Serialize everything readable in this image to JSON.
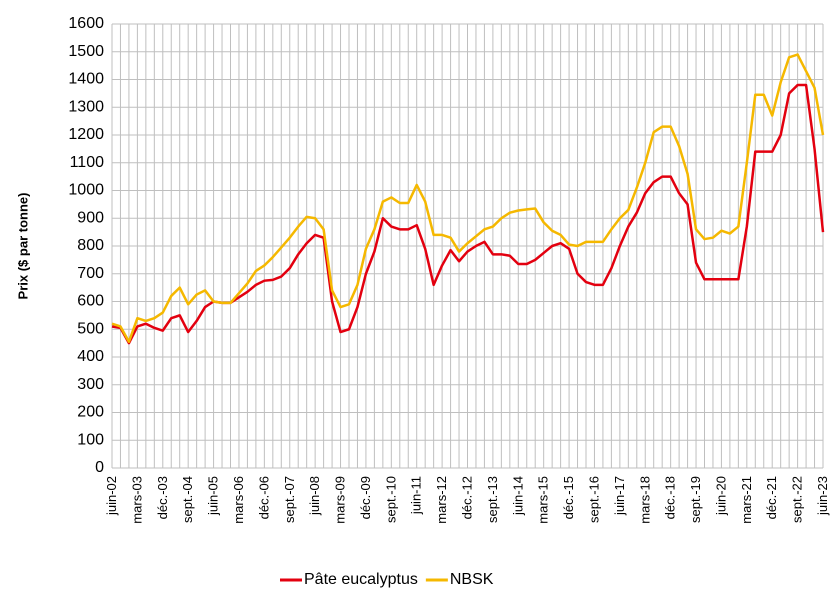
{
  "chart_data": {
    "type": "line",
    "y_label": "Prix ($ par tonne)",
    "categories": [
      "juin-02",
      null,
      null,
      "mars-03",
      null,
      null,
      "déc.-03",
      null,
      null,
      "sept.-04",
      null,
      null,
      "juin-05",
      null,
      null,
      "mars-06",
      null,
      null,
      "déc.-06",
      null,
      null,
      "sept.-07",
      null,
      null,
      "juin-08",
      null,
      null,
      "mars-09",
      null,
      null,
      "déc.-09",
      null,
      null,
      "sept.-10",
      null,
      null,
      "juin-11",
      null,
      null,
      "mars-12",
      null,
      null,
      "déc.-12",
      null,
      null,
      "sept.-13",
      null,
      null,
      "juin-14",
      null,
      null,
      "mars-15",
      null,
      null,
      "déc.-15",
      null,
      null,
      "sept.-16",
      null,
      null,
      "juin-17",
      null,
      null,
      "mars-18",
      null,
      null,
      "déc.-18",
      null,
      null,
      "sept.-19",
      null,
      null,
      "juin-20",
      null,
      null,
      "mars-21",
      null,
      null,
      "déc.-21",
      null,
      null,
      "sept.-22",
      null,
      null,
      "juin-23"
    ],
    "series": [
      {
        "name": "Pâte eucalyptus",
        "color": "#e3000f",
        "values": [
          510,
          505,
          450,
          510,
          520,
          505,
          495,
          540,
          550,
          490,
          530,
          580,
          600,
          595,
          595,
          615,
          635,
          660,
          675,
          678,
          690,
          720,
          770,
          810,
          840,
          830,
          600,
          490,
          500,
          580,
          700,
          780,
          900,
          870,
          860,
          860,
          875,
          790,
          660,
          730,
          785,
          745,
          780,
          800,
          815,
          770,
          770,
          765,
          735,
          735,
          750,
          775,
          800,
          810,
          790,
          700,
          670,
          660,
          660,
          720,
          800,
          870,
          920,
          990,
          1030,
          1050,
          1050,
          990,
          950,
          740,
          680,
          680,
          680,
          680,
          680,
          870,
          1140,
          1140,
          1140,
          1200,
          1350,
          1380,
          1380,
          1150,
          850
        ]
      },
      {
        "name": "NBSK",
        "color": "#f5b800",
        "values": [
          520,
          510,
          455,
          540,
          530,
          540,
          560,
          620,
          650,
          590,
          625,
          640,
          600,
          595,
          595,
          630,
          665,
          710,
          730,
          760,
          795,
          830,
          870,
          905,
          900,
          860,
          640,
          580,
          590,
          660,
          790,
          860,
          960,
          975,
          955,
          955,
          1020,
          960,
          840,
          840,
          830,
          780,
          810,
          835,
          860,
          870,
          900,
          920,
          928,
          932,
          935,
          885,
          855,
          840,
          805,
          800,
          815,
          815,
          815,
          860,
          900,
          930,
          1010,
          1100,
          1210,
          1230,
          1230,
          1160,
          1060,
          860,
          825,
          830,
          855,
          845,
          870,
          1100,
          1345,
          1345,
          1270,
          1390,
          1480,
          1490,
          1430,
          1370,
          1200
        ]
      }
    ],
    "ylim": [
      0,
      1600
    ],
    "yticks": [
      0,
      100,
      200,
      300,
      400,
      500,
      600,
      700,
      800,
      900,
      1000,
      1100,
      1200,
      1300,
      1400,
      1500,
      1600
    ],
    "grid": true
  }
}
